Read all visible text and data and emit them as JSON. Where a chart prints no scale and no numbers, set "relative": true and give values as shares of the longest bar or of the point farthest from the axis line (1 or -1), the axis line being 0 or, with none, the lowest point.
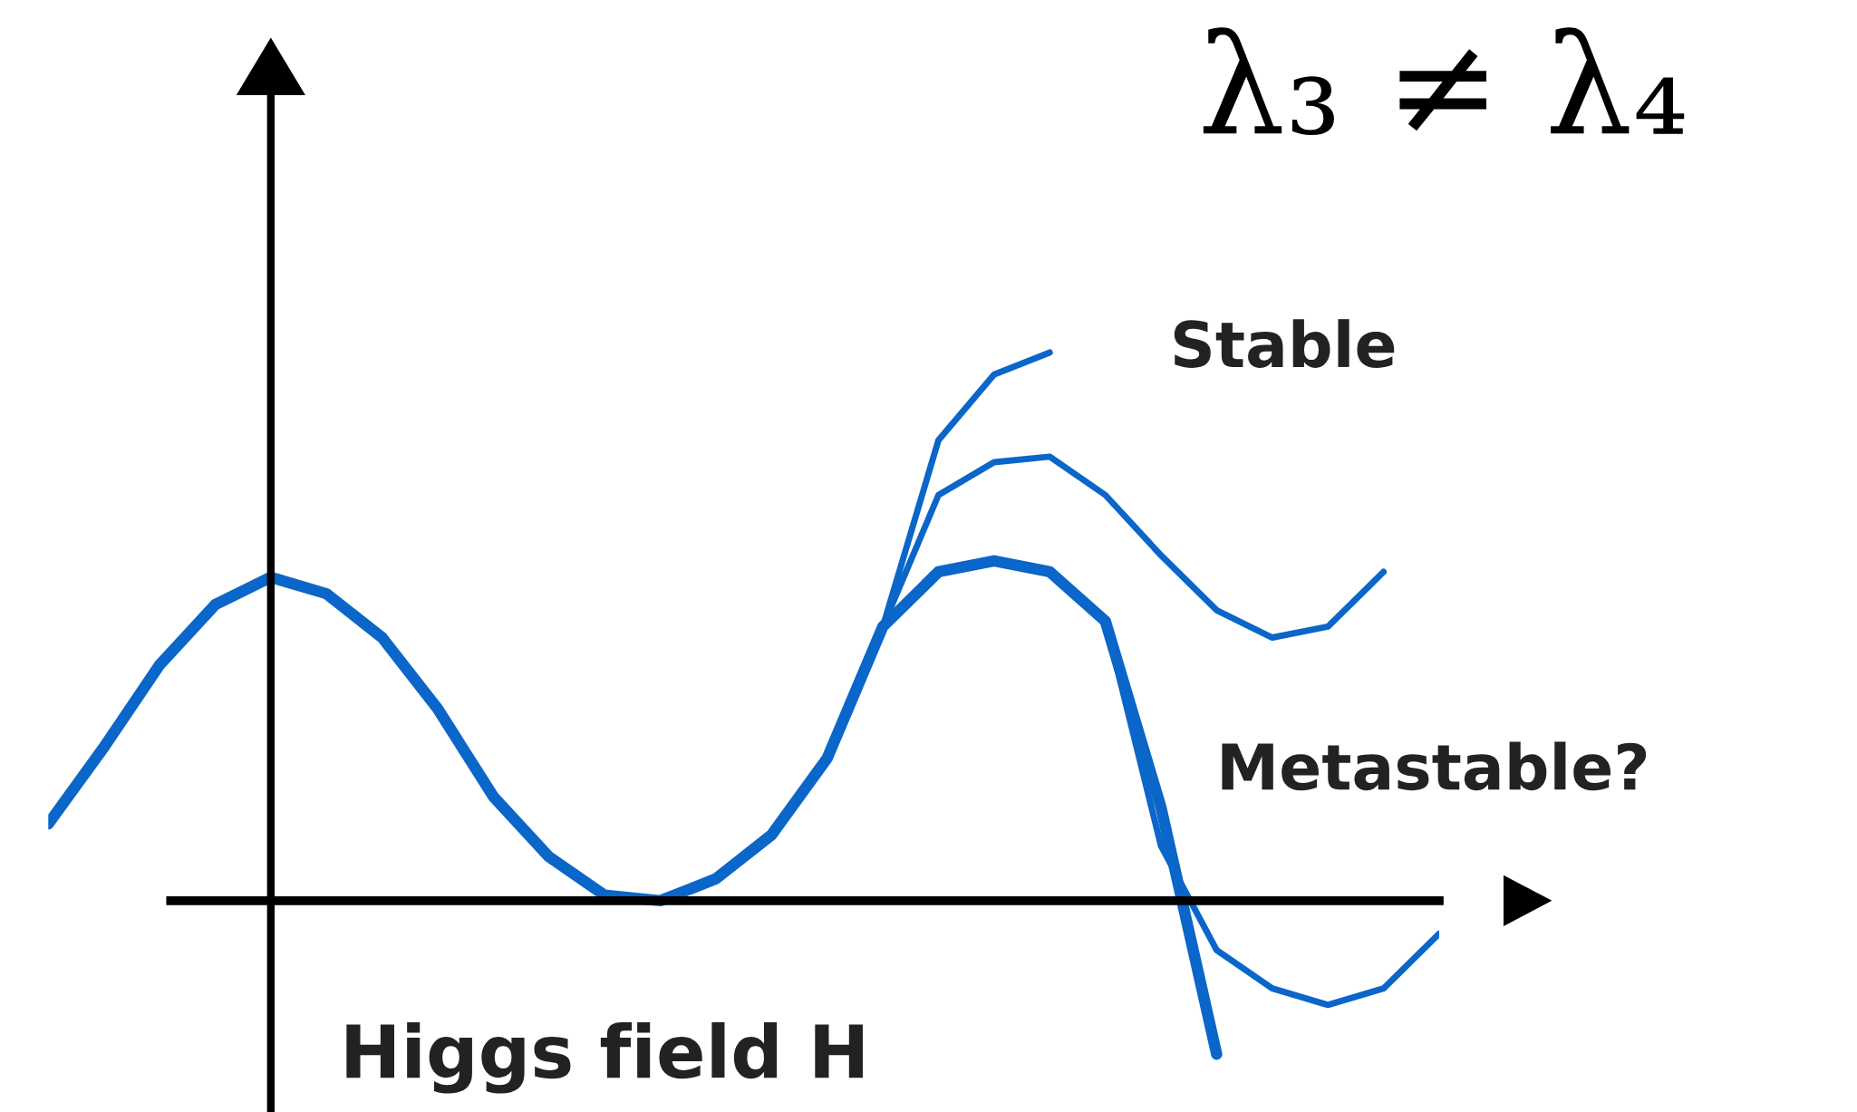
{
  "chart_data": {
    "type": "line",
    "relative": true,
    "xlabel": "Higgs field H",
    "legend": false,
    "marker": "none",
    "line_style": "solid",
    "tick_labels": false,
    "categories": [
      null,
      null,
      null,
      null,
      null,
      null,
      null,
      null,
      null,
      null,
      null,
      null,
      null,
      null,
      null,
      null,
      null,
      null,
      null,
      null,
      null,
      null,
      null,
      null,
      null,
      null
    ],
    "series": [
      {
        "color": "#0a66c8",
        "values": [
          0.14,
          0.28,
          0.43,
          0.54,
          0.59,
          0.56,
          0.48,
          0.35,
          0.19,
          0.08,
          0.01,
          0.0,
          0.04,
          0.12,
          0.26,
          0.5,
          0.6,
          0.62,
          0.6,
          0.51,
          0.17,
          -0.28,
          null,
          null,
          null,
          null
        ]
      },
      {
        "color": "#0a66c8",
        "values": [
          null,
          null,
          null,
          null,
          null,
          null,
          null,
          null,
          null,
          null,
          null,
          null,
          null,
          null,
          null,
          null,
          null,
          null,
          null,
          0.51,
          0.1,
          -0.09,
          -0.16,
          -0.19,
          -0.16,
          -0.06
        ]
      },
      {
        "color": "#0a66c8",
        "values": [
          null,
          null,
          null,
          null,
          null,
          null,
          null,
          null,
          null,
          null,
          null,
          null,
          null,
          null,
          null,
          0.5,
          0.74,
          0.8,
          0.81,
          0.74,
          0.63,
          0.53,
          0.48,
          0.5,
          0.6,
          null
        ]
      },
      {
        "color": "#0a66c8",
        "values": [
          null,
          null,
          null,
          null,
          null,
          null,
          null,
          null,
          null,
          null,
          null,
          null,
          null,
          null,
          null,
          0.5,
          0.84,
          0.96,
          1.0,
          null,
          null,
          null,
          null,
          null,
          null,
          null
        ]
      }
    ],
    "annotations": [
      "Stable",
      "Metastable?",
      "λ₃ ≠ λ₄"
    ]
  }
}
